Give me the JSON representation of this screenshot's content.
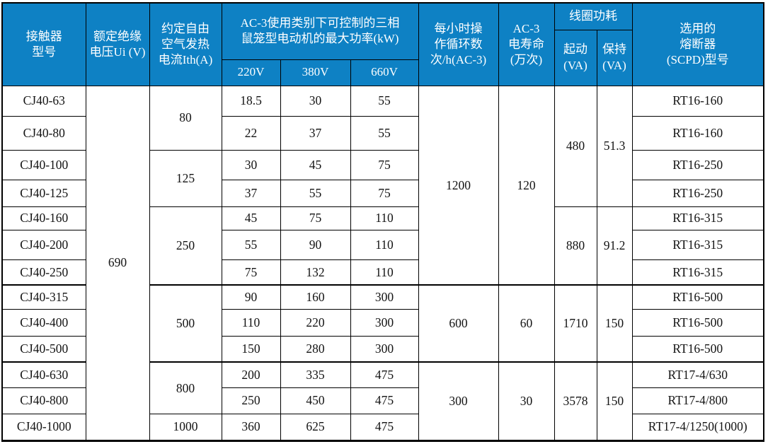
{
  "colors": {
    "header_bg": "#0e81c4",
    "header_text": "#ffffff",
    "body_text": "#141414",
    "border": "#000000"
  },
  "table": {
    "header_rows": [
      [
        {
          "t": "接触器\n型号",
          "rs": 3,
          "name": "col-header-model"
        },
        {
          "t": "额定绝缘\n电压Ui (V)",
          "rs": 3,
          "name": "col-header-insulation-voltage"
        },
        {
          "t": "约定自由\n空气发热\n电流Ith(A)",
          "rs": 3,
          "name": "col-header-thermal-current"
        },
        {
          "t": "AC-3使用类别下可控制的三相\n鼠笼型电动机的最大功率(kW)",
          "cs": 3,
          "rs": 2,
          "name": "col-header-max-power-kw"
        },
        {
          "t": "每小时操\n作循环数\n次/h(AC-3)",
          "rs": 3,
          "name": "col-header-cycles-per-hour"
        },
        {
          "t": "AC-3\n电寿命\n(万次)",
          "rs": 3,
          "name": "col-header-electrical-life"
        },
        {
          "t": "线圈功耗",
          "cs": 2,
          "name": "col-header-coil-consumption"
        },
        {
          "t": "选用的\n熔断器\n(SCPD)型号",
          "rs": 3,
          "name": "col-header-fuse-model"
        }
      ],
      [
        {
          "t": "起动\n(VA)",
          "rs": 2,
          "name": "col-header-coil-start-va"
        },
        {
          "t": "保持\n(VA)",
          "rs": 2,
          "name": "col-header-coil-hold-va"
        }
      ],
      [
        {
          "t": "220V",
          "name": "col-header-220v"
        },
        {
          "t": "380V",
          "name": "col-header-380v"
        },
        {
          "t": "660V",
          "name": "col-header-660v"
        }
      ]
    ],
    "body_rows": [
      [
        {
          "t": "CJ40-63"
        },
        {
          "t": "690",
          "rs": 13
        },
        {
          "t": "80",
          "rs": 2
        },
        {
          "t": "18.5"
        },
        {
          "t": "30"
        },
        {
          "t": "55"
        },
        {
          "t": "1200",
          "rs": 7
        },
        {
          "t": "120",
          "rs": 7
        },
        {
          "t": "480",
          "rs": 4
        },
        {
          "t": "51.3",
          "rs": 4
        },
        {
          "t": "RT16-160"
        }
      ],
      [
        {
          "t": "CJ40-80"
        },
        {
          "t": "22"
        },
        {
          "t": "37"
        },
        {
          "t": "55"
        },
        {
          "t": "RT16-160"
        }
      ],
      [
        {
          "t": "CJ40-100"
        },
        {
          "t": "125",
          "rs": 2
        },
        {
          "t": "30"
        },
        {
          "t": "45"
        },
        {
          "t": "75"
        },
        {
          "t": "RT16-250"
        }
      ],
      [
        {
          "t": "CJ40-125"
        },
        {
          "t": "37"
        },
        {
          "t": "55"
        },
        {
          "t": "75"
        },
        {
          "t": "RT16-250"
        }
      ],
      [
        {
          "t": "CJ40-160"
        },
        {
          "t": "250",
          "rs": 3
        },
        {
          "t": "45"
        },
        {
          "t": "75"
        },
        {
          "t": "110"
        },
        {
          "t": "880",
          "rs": 3
        },
        {
          "t": "91.2",
          "rs": 3
        },
        {
          "t": "RT16-315"
        }
      ],
      [
        {
          "t": "CJ40-200"
        },
        {
          "t": "55"
        },
        {
          "t": "90"
        },
        {
          "t": "110"
        },
        {
          "t": "RT16-315"
        }
      ],
      [
        {
          "t": "CJ40-250"
        },
        {
          "t": "75"
        },
        {
          "t": "132"
        },
        {
          "t": "110"
        },
        {
          "t": "RT16-315"
        }
      ],
      [
        {
          "t": "CJ40-315"
        },
        {
          "t": "500",
          "rs": 3
        },
        {
          "t": "90"
        },
        {
          "t": "160"
        },
        {
          "t": "300"
        },
        {
          "t": "600",
          "rs": 3
        },
        {
          "t": "60",
          "rs": 3
        },
        {
          "t": "1710",
          "rs": 3
        },
        {
          "t": "150",
          "rs": 3
        },
        {
          "t": "RT16-500"
        }
      ],
      [
        {
          "t": "CJ40-400"
        },
        {
          "t": "110"
        },
        {
          "t": "220"
        },
        {
          "t": "300"
        },
        {
          "t": "RT16-500"
        }
      ],
      [
        {
          "t": "CJ40-500"
        },
        {
          "t": "150"
        },
        {
          "t": "280"
        },
        {
          "t": "300"
        },
        {
          "t": "RT16-500"
        }
      ],
      [
        {
          "t": "CJ40-630"
        },
        {
          "t": "800",
          "rs": 2
        },
        {
          "t": "200"
        },
        {
          "t": "335"
        },
        {
          "t": "475"
        },
        {
          "t": "300",
          "rs": 3
        },
        {
          "t": "30",
          "rs": 3
        },
        {
          "t": "3578",
          "rs": 3
        },
        {
          "t": "150",
          "rs": 3
        },
        {
          "t": "RT17-4/630"
        }
      ],
      [
        {
          "t": "CJ40-800"
        },
        {
          "t": "250"
        },
        {
          "t": "450"
        },
        {
          "t": "475"
        },
        {
          "t": "RT17-4/800"
        }
      ],
      [
        {
          "t": "CJ40-1000"
        },
        {
          "t": "1000"
        },
        {
          "t": "360"
        },
        {
          "t": "625"
        },
        {
          "t": "475"
        },
        {
          "t": "RT17-4/1250(1000)"
        }
      ]
    ]
  }
}
